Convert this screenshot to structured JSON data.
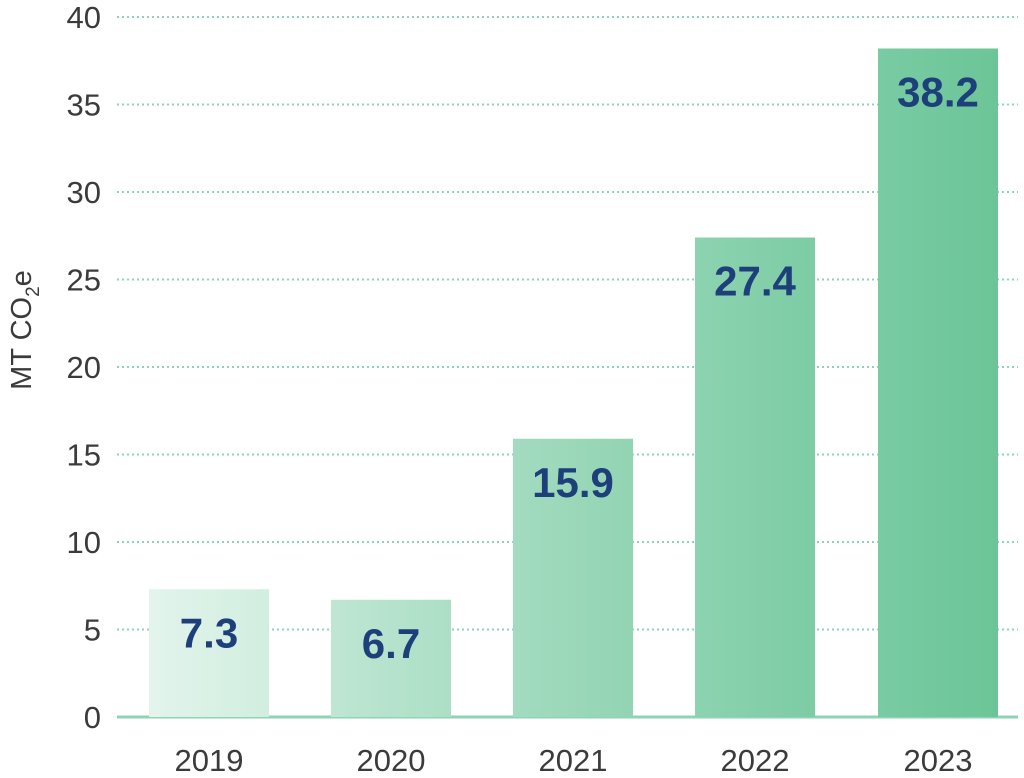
{
  "chart_data": {
    "type": "bar",
    "categories": [
      "2019",
      "2020",
      "2021",
      "2022",
      "2023"
    ],
    "values": [
      7.3,
      6.7,
      15.9,
      27.4,
      38.2
    ],
    "value_labels": [
      "7.3",
      "6.7",
      "15.9",
      "27.4",
      "38.2"
    ],
    "title": "",
    "xlabel": "",
    "ylabel": {
      "main": "MT CO",
      "subscript": "2",
      "suffix": "e"
    },
    "ylim": [
      0,
      40
    ],
    "yticks": [
      0,
      5,
      10,
      15,
      20,
      25,
      30,
      35,
      40
    ],
    "grid": true,
    "legend": "none",
    "colors": {
      "bar_gradient_light": [
        "#e3f4ec",
        "#bfe6d3",
        "#a3dbc0",
        "#8dd3b1",
        "#79cba3"
      ],
      "bar_gradient_dark": [
        "#d1eee0",
        "#acdfc6",
        "#92d4b3",
        "#7ccca4",
        "#6cc597"
      ],
      "value_text": "#1d3f7a",
      "gridline": "#8fd3b6",
      "axis_text": "#3b3b3b"
    }
  }
}
